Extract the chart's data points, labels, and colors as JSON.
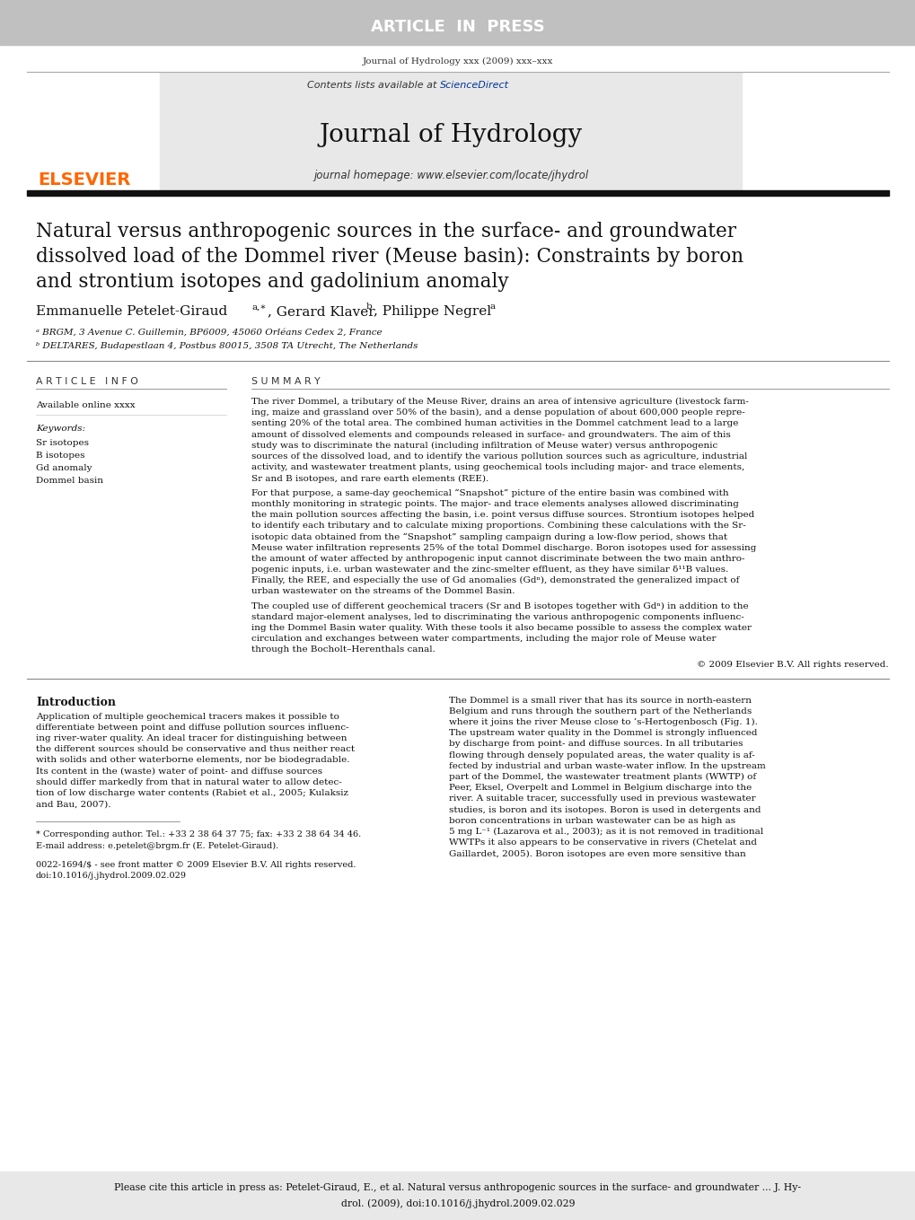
{
  "article_in_press_text": "ARTICLE  IN  PRESS",
  "article_in_press_bg": "#c0c0c0",
  "journal_ref": "Journal of Hydrology xxx (2009) xxx–xxx",
  "contents_text": "Contents lists available at ",
  "science_direct": "ScienceDirect",
  "journal_title": "Journal of Hydrology",
  "journal_homepage": "journal homepage: www.elsevier.com/locate/jhydrol",
  "elsevier_color": "#FF6600",
  "science_direct_color": "#003399",
  "header_bg": "#e8e8e8",
  "paper_title_line1": "Natural versus anthropogenic sources in the surface- and groundwater",
  "paper_title_line2": "dissolved load of the Dommel river (Meuse basin): Constraints by boron",
  "paper_title_line3": "and strontium isotopes and gadolinium anomaly",
  "affil_a": "ᵃ BRGM, 3 Avenue C. Guillemin, BP6009, 45060 Orléans Cedex 2, France",
  "affil_b": "ᵇ DELTARES, Budapestlaan 4, Postbus 80015, 3508 TA Utrecht, The Netherlands",
  "article_info_header": "A R T I C L E   I N F O",
  "summary_header": "S U M M A R Y",
  "available_online": "Available online xxxx",
  "keywords_label": "Keywords:",
  "keywords": [
    "Sr isotopes",
    "B isotopes",
    "Gd anomaly",
    "Dommel basin"
  ],
  "summary_p1": "The river Dommel, a tributary of the Meuse River, drains an area of intensive agriculture (livestock farm-\ning, maize and grassland over 50% of the basin), and a dense population of about 600,000 people repre-\nsenting 20% of the total area. The combined human activities in the Dommel catchment lead to a large\namount of dissolved elements and compounds released in surface- and groundwaters. The aim of this\nstudy was to discriminate the natural (including infiltration of Meuse water) versus anthropogenic\nsources of the dissolved load, and to identify the various pollution sources such as agriculture, industrial\nactivity, and wastewater treatment plants, using geochemical tools including major- and trace elements,\nSr and B isotopes, and rare earth elements (REE).",
  "summary_p2": "For that purpose, a same-day geochemical “Snapshot” picture of the entire basin was combined with\nmonthly monitoring in strategic points. The major- and trace elements analyses allowed discriminating\nthe main pollution sources affecting the basin, i.e. point versus diffuse sources. Strontium isotopes helped\nto identify each tributary and to calculate mixing proportions. Combining these calculations with the Sr-\nisotopic data obtained from the “Snapshot” sampling campaign during a low-flow period, shows that\nMeuse water infiltration represents 25% of the total Dommel discharge. Boron isotopes used for assessing\nthe amount of water affected by anthropogenic input cannot discriminate between the two main anthro-\npogenic inputs, i.e. urban wastewater and the zinc-smelter effluent, as they have similar δ¹¹B values.\nFinally, the REE, and especially the use of Gd anomalies (Gdⁿ), demonstrated the generalized impact of\nurban wastewater on the streams of the Dommel Basin.",
  "summary_p3": "The coupled use of different geochemical tracers (Sr and B isotopes together with Gdⁿ) in addition to the\nstandard major-element analyses, led to discriminating the various anthropogenic components influenc-\ning the Dommel Basin water quality. With these tools it also became possible to assess the complex water\ncirculation and exchanges between water compartments, including the major role of Meuse water\nthrough the Bocholt–Herenthals canal.",
  "copyright": "© 2009 Elsevier B.V. All rights reserved.",
  "intro_header": "Introduction",
  "intro_p1": "Application of multiple geochemical tracers makes it possible to\ndifferentiate between point and diffuse pollution sources influenc-\ning river-water quality. An ideal tracer for distinguishing between\nthe different sources should be conservative and thus neither react\nwith solids and other waterborne elements, nor be biodegradable.\nIts content in the (waste) water of point- and diffuse sources\nshould differ markedly from that in natural water to allow detec-\ntion of low discharge water contents (Rabiet et al., 2005; Kulaksiz\nand Bau, 2007).",
  "right_p1": "The Dommel is a small river that has its source in north-eastern\nBelgium and runs through the southern part of the Netherlands\nwhere it joins the river Meuse close to ’s-Hertogenbosch (Fig. 1).\nThe upstream water quality in the Dommel is strongly influenced\nby discharge from point- and diffuse sources. In all tributaries\nflowing through densely populated areas, the water quality is af-\nfected by industrial and urban waste-water inflow. In the upstream\npart of the Dommel, the wastewater treatment plants (WWTP) of\nPeer, Eksel, Overpelt and Lommel in Belgium discharge into the\nriver. A suitable tracer, successfully used in previous wastewater\nstudies, is boron and its isotopes. Boron is used in detergents and\nboron concentrations in urban wastewater can be as high as\n5 mg L⁻¹ (Lazarova et al., 2003); as it is not removed in traditional\nWWTPs it also appears to be conservative in rivers (Chetelat and\nGaillardet, 2005). Boron isotopes are even more sensitive than",
  "footnote_star": "* Corresponding author. Tel.: +33 2 38 64 37 75; fax: +33 2 38 64 34 46.",
  "footnote_email": "E-mail address: e.petelet@brgm.fr (E. Petelet-Giraud).",
  "issn_line": "0022-1694/$ - see front matter © 2009 Elsevier B.V. All rights reserved.",
  "doi_line": "doi:10.1016/j.jhydrol.2009.02.029",
  "cite_box_line1": "Please cite this article in press as: Petelet-Giraud, E., et al. Natural versus anthropogenic sources in the surface- and groundwater ... J. Hy-",
  "cite_box_line2": "drol. (2009), doi:10.1016/j.jhydrol.2009.02.029",
  "cite_box_bg": "#e8e8e8",
  "bg_color": "#ffffff"
}
